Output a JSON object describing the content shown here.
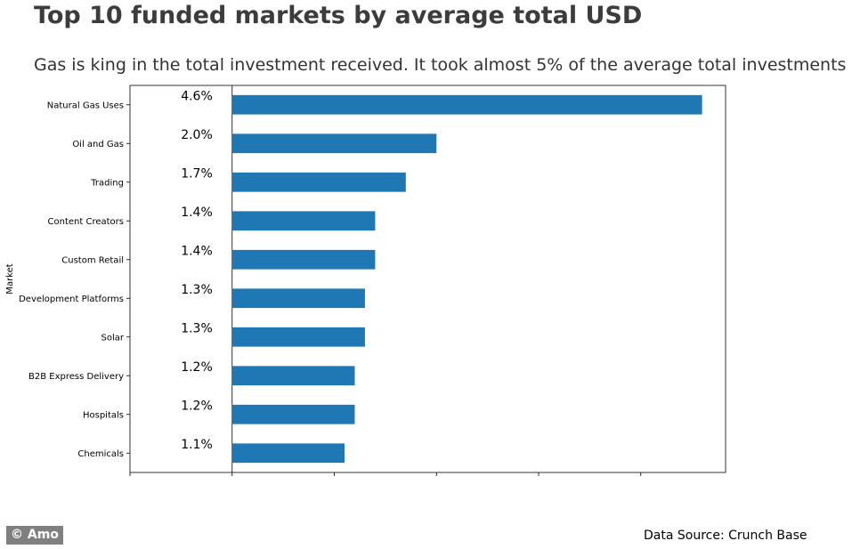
{
  "title": "Top 10 funded markets by average total USD",
  "subtitle": "Gas is king in the total investment received. It took almost 5% of the average total investments",
  "credit": "© Amo",
  "source": "Data Source: Crunch Base",
  "colors": {
    "bar": "#1f77b4",
    "title": "#3c3c3c",
    "credit_bg": "#808080"
  },
  "chart_data": {
    "type": "bar",
    "orientation": "horizontal",
    "ylabel": "Market",
    "categories": [
      "Natural Gas Uses",
      "Oil and Gas",
      "Trading",
      "Content Creators",
      "Custom Retail",
      "Development Platforms",
      "Solar",
      "B2B Express Delivery",
      "Hospitals",
      "Chemicals"
    ],
    "values": [
      4.6,
      2.0,
      1.7,
      1.4,
      1.4,
      1.3,
      1.3,
      1.2,
      1.2,
      1.1
    ],
    "data_labels": [
      "4.6%",
      "2.0%",
      "1.7%",
      "1.4%",
      "1.4%",
      "1.3%",
      "1.3%",
      "1.2%",
      "1.2%",
      "1.1%"
    ],
    "xlim": [
      -1,
      4.83
    ],
    "grid": false
  }
}
